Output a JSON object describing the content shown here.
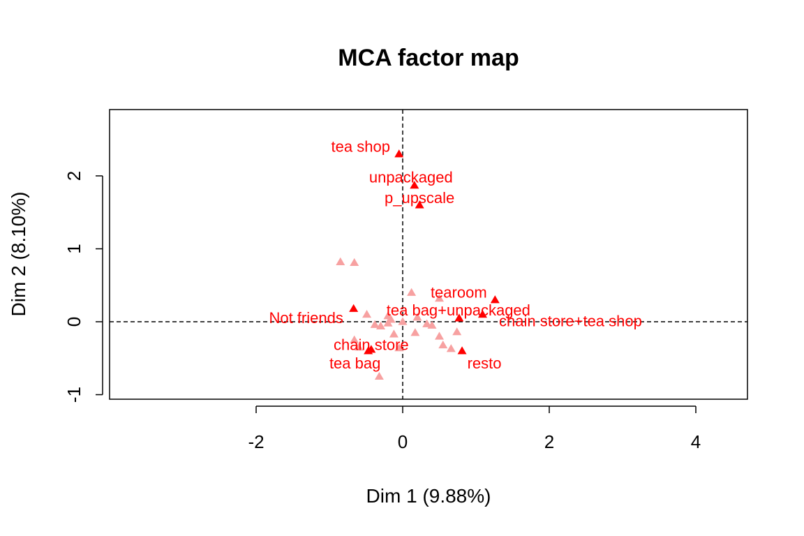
{
  "chart_data": {
    "type": "scatter",
    "title": "MCA factor map",
    "xlabel": "Dim 1 (9.88%)",
    "ylabel": "Dim 2 (8.10%)",
    "xlim": [
      -2,
      4.5
    ],
    "ylim": [
      -1,
      2.8
    ],
    "xticks": [
      -2,
      0,
      2,
      4
    ],
    "yticks": [
      -1,
      0,
      1,
      2
    ],
    "reference_lines": {
      "x": 0,
      "y": 0,
      "style": "dashed"
    },
    "grid": false,
    "colors": {
      "highlighted": "#ff0000",
      "faded": "#f7a1a1"
    },
    "highlighted_points": [
      {
        "label": "tea shop",
        "x": -0.05,
        "y": 2.3
      },
      {
        "label": "unpackaged",
        "x": 0.16,
        "y": 1.87
      },
      {
        "label": "p_upscale",
        "x": 0.23,
        "y": 1.6
      },
      {
        "label": "tearoom",
        "x": 1.26,
        "y": 0.3
      },
      {
        "label": "tea bag+unpackaged",
        "x": 0.77,
        "y": 0.05
      },
      {
        "label": "chain store+tea shop",
        "x": 1.09,
        "y": 0.1
      },
      {
        "label": "Not friends",
        "x": -0.67,
        "y": 0.18
      },
      {
        "label": "chain store",
        "x": -0.43,
        "y": -0.38
      },
      {
        "label": "tea bag",
        "x": -0.47,
        "y": -0.4
      },
      {
        "label": "resto",
        "x": 0.81,
        "y": -0.4
      }
    ],
    "faded_points": [
      {
        "x": -0.85,
        "y": 0.82
      },
      {
        "x": -0.66,
        "y": 0.81
      },
      {
        "x": 0.12,
        "y": 0.4
      },
      {
        "x": 0.5,
        "y": 0.32
      },
      {
        "x": -0.49,
        "y": 0.1
      },
      {
        "x": -0.2,
        "y": 0.08
      },
      {
        "x": -0.16,
        "y": 0.03
      },
      {
        "x": 0.0,
        "y": 0.0
      },
      {
        "x": 0.2,
        "y": 0.06
      },
      {
        "x": 0.33,
        "y": -0.03
      },
      {
        "x": 0.4,
        "y": -0.05
      },
      {
        "x": -0.38,
        "y": -0.04
      },
      {
        "x": -0.3,
        "y": -0.06
      },
      {
        "x": -0.2,
        "y": -0.02
      },
      {
        "x": -0.12,
        "y": -0.17
      },
      {
        "x": 0.17,
        "y": -0.15
      },
      {
        "x": 0.5,
        "y": -0.2
      },
      {
        "x": 0.55,
        "y": -0.32
      },
      {
        "x": 0.66,
        "y": -0.37
      },
      {
        "x": 0.74,
        "y": -0.14
      },
      {
        "x": -0.66,
        "y": -0.25
      },
      {
        "x": -0.6,
        "y": -0.35
      },
      {
        "x": -0.05,
        "y": -0.36
      },
      {
        "x": -0.32,
        "y": -0.75
      }
    ]
  }
}
